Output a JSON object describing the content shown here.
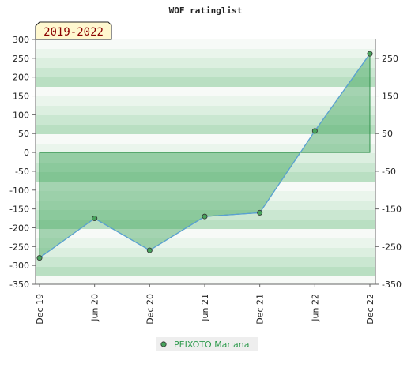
{
  "chart_data": {
    "type": "area",
    "title": "WOF ratinglist",
    "period_badge": "2019-2022",
    "categories": [
      "Dec 19",
      "Jun 20",
      "Dec 20",
      "Jun 21",
      "Dec 21",
      "Jun 22",
      "Dec 22"
    ],
    "series": [
      {
        "name": "PEIXOTO Mariana",
        "values": [
          -280,
          -175,
          -260,
          -170,
          -160,
          57,
          262
        ]
      }
    ],
    "y_left": {
      "min": -350,
      "max": 300,
      "step": 50,
      "ticks": [
        "300",
        "250",
        "200",
        "150",
        "100",
        "50",
        "0",
        "-50",
        "-100",
        "-150",
        "-200",
        "-250",
        "-300",
        "-350"
      ]
    },
    "y_right": {
      "min": -350,
      "max": 300,
      "ticks": [
        "250",
        "150",
        "50",
        "-50",
        "-150",
        "-250",
        "-350"
      ]
    },
    "legend_position": "bottom",
    "colors": {
      "line": "#5aa0d8",
      "fill": "#3fa55a",
      "fill_edge": "#2f8f4a",
      "point": "#49a35d",
      "legend_text": "#2f9b4e",
      "badge_bg": "#fff8cf",
      "badge_text": "#8b0000"
    }
  }
}
